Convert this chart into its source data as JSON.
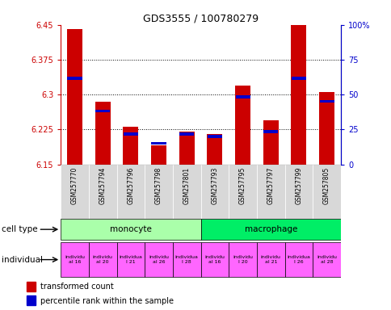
{
  "title": "GDS3555 / 100780279",
  "samples": [
    "GSM257770",
    "GSM257794",
    "GSM257796",
    "GSM257798",
    "GSM257801",
    "GSM257793",
    "GSM257795",
    "GSM257797",
    "GSM257799",
    "GSM257805"
  ],
  "red_values": [
    6.44,
    6.285,
    6.23,
    6.19,
    6.22,
    6.215,
    6.32,
    6.245,
    6.45,
    6.305
  ],
  "blue_values": [
    6.335,
    6.265,
    6.215,
    6.195,
    6.215,
    6.21,
    6.295,
    6.22,
    6.335,
    6.285
  ],
  "ylim_left": [
    6.15,
    6.45
  ],
  "ylim_right": [
    0,
    100
  ],
  "yticks_left": [
    6.15,
    6.225,
    6.3,
    6.375,
    6.45
  ],
  "yticks_right": [
    0,
    25,
    50,
    75,
    100
  ],
  "ytick_labels_left": [
    "6.15",
    "6.225",
    "6.3",
    "6.375",
    "6.45"
  ],
  "ytick_labels_right": [
    "0",
    "25",
    "50",
    "75",
    "100%"
  ],
  "grid_values": [
    6.225,
    6.3,
    6.375
  ],
  "bar_bottom": 6.15,
  "legend_red": "transformed count",
  "legend_blue": "percentile rank within the sample",
  "red_color": "#cc0000",
  "blue_color": "#0000cc",
  "monocyte_color": "#aaffaa",
  "macrophage_color": "#00ee66",
  "individual_color": "#ff66ff",
  "sample_bg_color": "#d8d8d8",
  "bar_width": 0.55,
  "blue_bar_height": 0.006,
  "cell_type_monocyte": "monocyte",
  "cell_type_macrophage": "macrophage",
  "ind_labels": [
    "individu\nal 16",
    "individu\nal 20",
    "individua\nl 21",
    "individu\nal 26",
    "individua\nl 28",
    "individu\nal 16",
    "individu\nl 20",
    "individu\nal 21",
    "individua\nl 26",
    "individu\nal 28"
  ]
}
